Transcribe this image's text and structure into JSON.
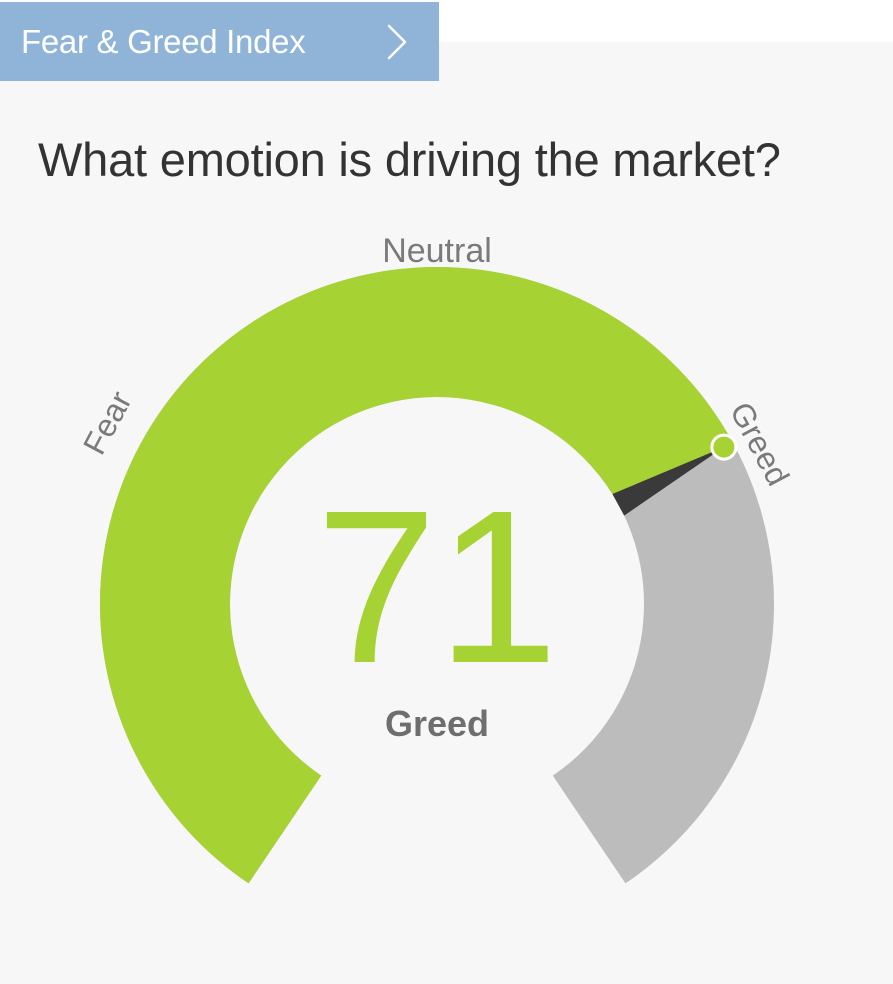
{
  "header": {
    "tab_label": "Fear & Greed Index",
    "chevron_icon": "chevron-right-icon"
  },
  "question": "What emotion is driving the market?",
  "gauge": {
    "value": "71",
    "rating": "Greed",
    "value_fraction": 0.71,
    "zone_labels": {
      "fear": "Fear",
      "neutral": "Neutral",
      "greed": "Greed"
    },
    "colors": {
      "fill": "#a6d234",
      "track": "#bcbcbc",
      "needle": "#3a3a3a",
      "value_text": "#a6d234",
      "rating_text": "#6e6e6e",
      "zone_text": "#7a7a7a"
    }
  }
}
